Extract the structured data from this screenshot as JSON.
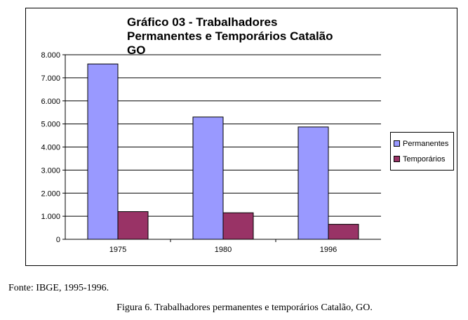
{
  "chart_data": {
    "type": "bar",
    "title": "Gráfico 03 - Trabalhadores Permanentes e Temporários Catalão GO",
    "categories": [
      "1975",
      "1980",
      "1996"
    ],
    "series": [
      {
        "name": "Permanentes",
        "values": [
          7600,
          5300,
          4870
        ],
        "color": "#9999ff"
      },
      {
        "name": "Temporários",
        "values": [
          1200,
          1150,
          650
        ],
        "color": "#993366"
      }
    ],
    "ylim": [
      0,
      8000
    ],
    "yticks": [
      "0",
      "1.000",
      "2.000",
      "3.000",
      "4.000",
      "5.000",
      "6.000",
      "7.000",
      "8.000"
    ],
    "grid": true,
    "legend": "right"
  },
  "source": "Fonte: IBGE, 1995-1996.",
  "caption": "Figura 6. Trabalhadores permanentes e temporários Catalão, GO."
}
